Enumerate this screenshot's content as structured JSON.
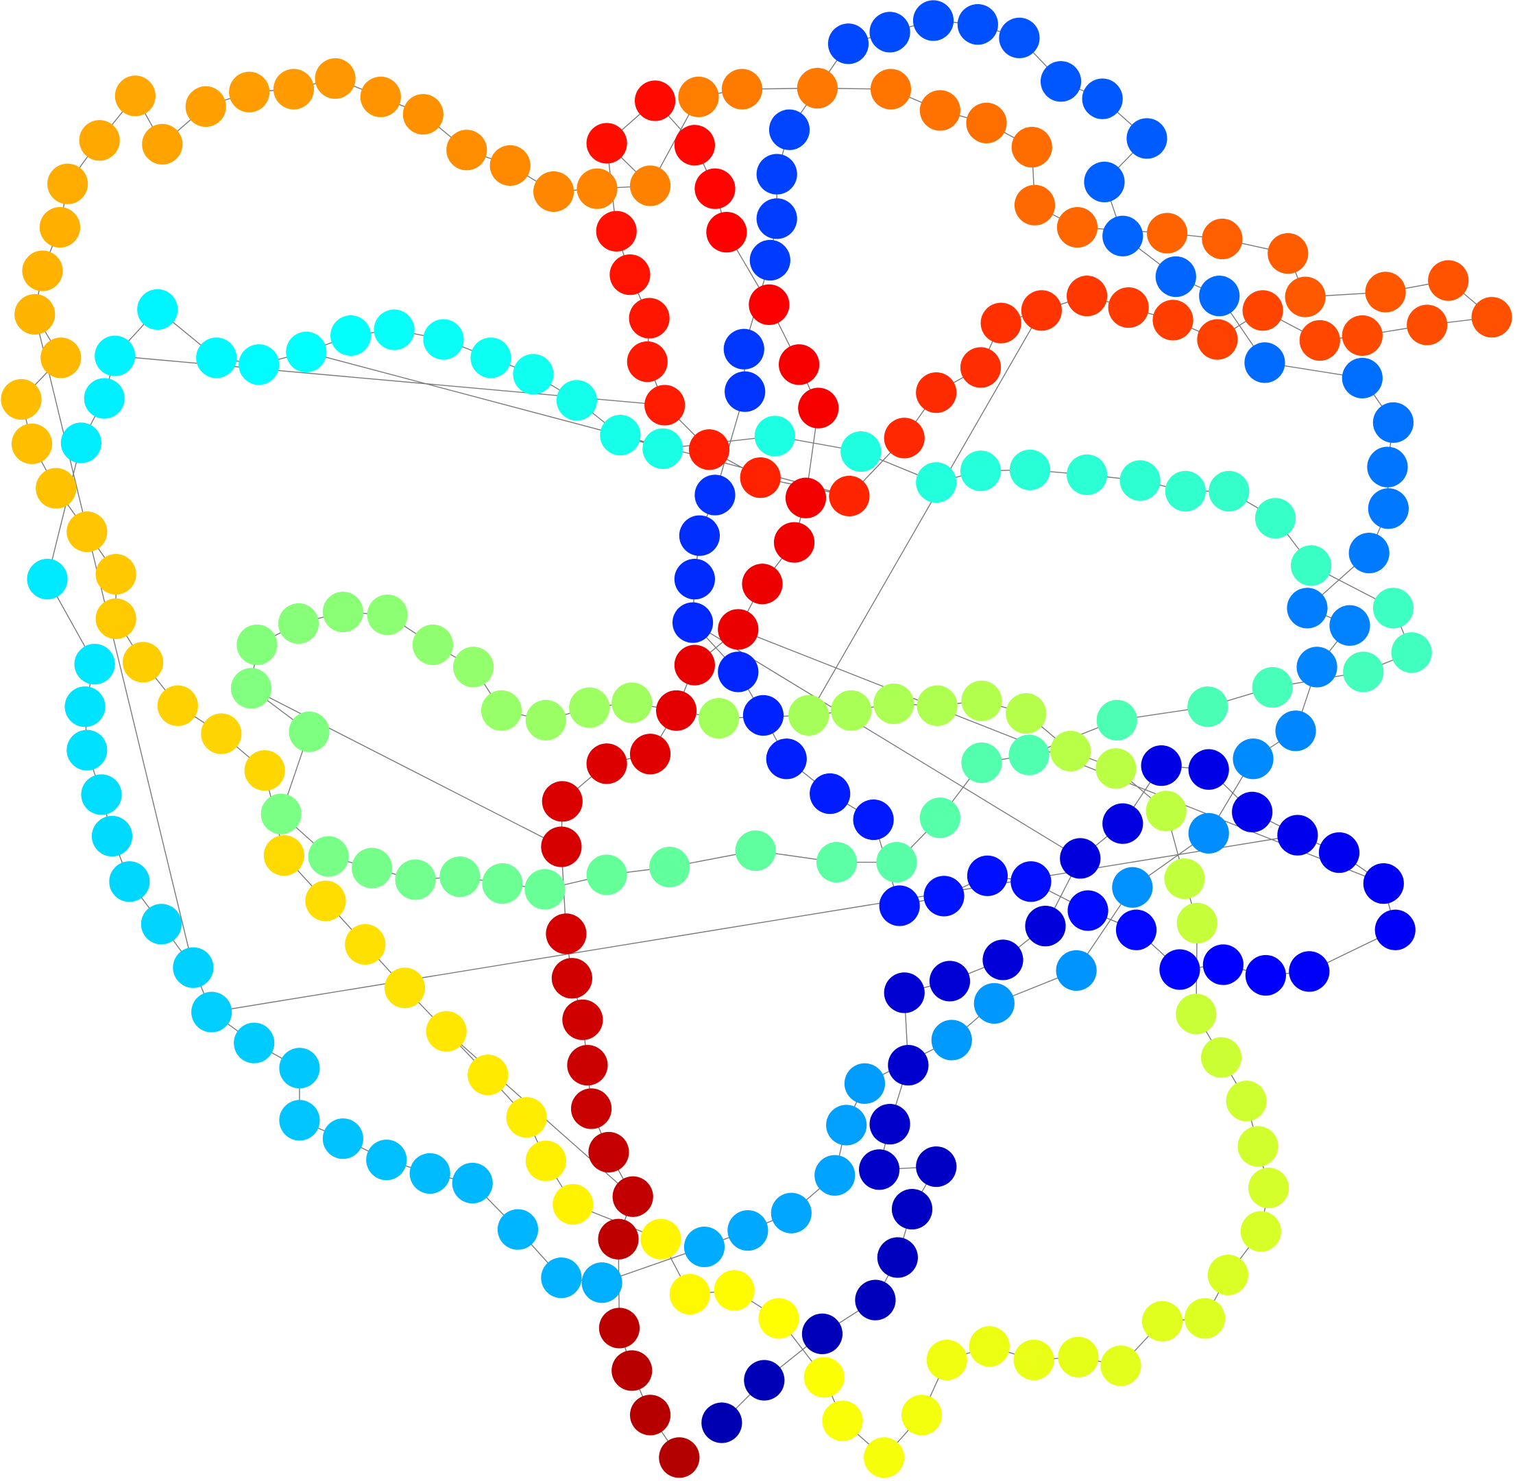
{
  "graph": {
    "nodes": 318,
    "background": "#ffffff",
    "edge_color": "#7a7a7a",
    "colormap": "jet",
    "colormap_start": "#800000",
    "colormap_end": "#000080"
  }
}
